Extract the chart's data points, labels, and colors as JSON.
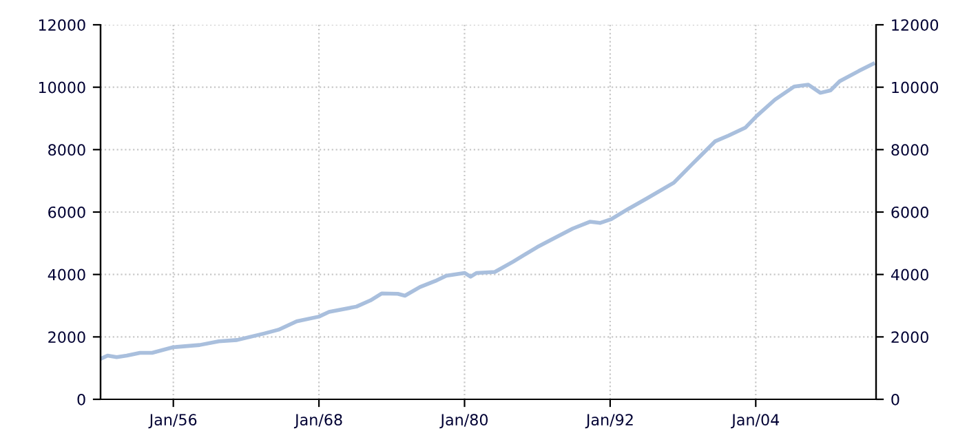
{
  "chart_data": {
    "type": "line",
    "color": "#a9bfdd",
    "x": [
      "1950-02",
      "1950-08",
      "1951-05",
      "1952-03",
      "1953-04",
      "1954-04",
      "1956-01",
      "1958-03",
      "1959-10",
      "1961-04",
      "1963-07",
      "1964-09",
      "1966-03",
      "1968-01",
      "1968-11",
      "1971-02",
      "1972-04",
      "1973-03",
      "1974-07",
      "1975-02",
      "1976-05",
      "1977-08",
      "1978-07",
      "1980-01",
      "1980-07",
      "1981-01",
      "1982-07",
      "1984-01",
      "1986-01",
      "1987-02",
      "1988-12",
      "1990-05",
      "1991-03",
      "1992-02",
      "1993-07",
      "1995-01",
      "1997-04",
      "1998-10",
      "2000-09",
      "2001-10",
      "2003-03",
      "2004-02",
      "2005-08",
      "2007-03",
      "2008-05",
      "2009-05",
      "2010-03",
      "2010-12",
      "2012-07",
      "2013-09"
    ],
    "values": [
      1310,
      1400,
      1350,
      1400,
      1490,
      1490,
      1670,
      1740,
      1860,
      1900,
      2110,
      2230,
      2500,
      2650,
      2800,
      2970,
      3170,
      3390,
      3380,
      3320,
      3600,
      3790,
      3960,
      4050,
      3930,
      4050,
      4080,
      4410,
      4880,
      5100,
      5470,
      5690,
      5650,
      5770,
      6100,
      6430,
      6940,
      7530,
      8270,
      8450,
      8710,
      9080,
      9600,
      10020,
      10080,
      9820,
      9900,
      10190,
      10520,
      10750
    ],
    "xlim": [
      "1950-01",
      "2013-12"
    ],
    "xticks": [
      {
        "value": "1956-01",
        "label": "Jan/56"
      },
      {
        "value": "1968-01",
        "label": "Jan/68"
      },
      {
        "value": "1980-01",
        "label": "Jan/80"
      },
      {
        "value": "1992-01",
        "label": "Jan/92"
      },
      {
        "value": "2004-01",
        "label": "Jan/04"
      }
    ],
    "ylim": [
      0,
      12000
    ],
    "yticks": [
      0,
      2000,
      4000,
      6000,
      8000,
      10000,
      12000
    ],
    "y2lim": [
      0,
      12000
    ],
    "y2ticks": [
      0,
      2000,
      4000,
      6000,
      8000,
      10000,
      12000
    ],
    "grid": true,
    "line_style": "solid",
    "marker": "none"
  }
}
